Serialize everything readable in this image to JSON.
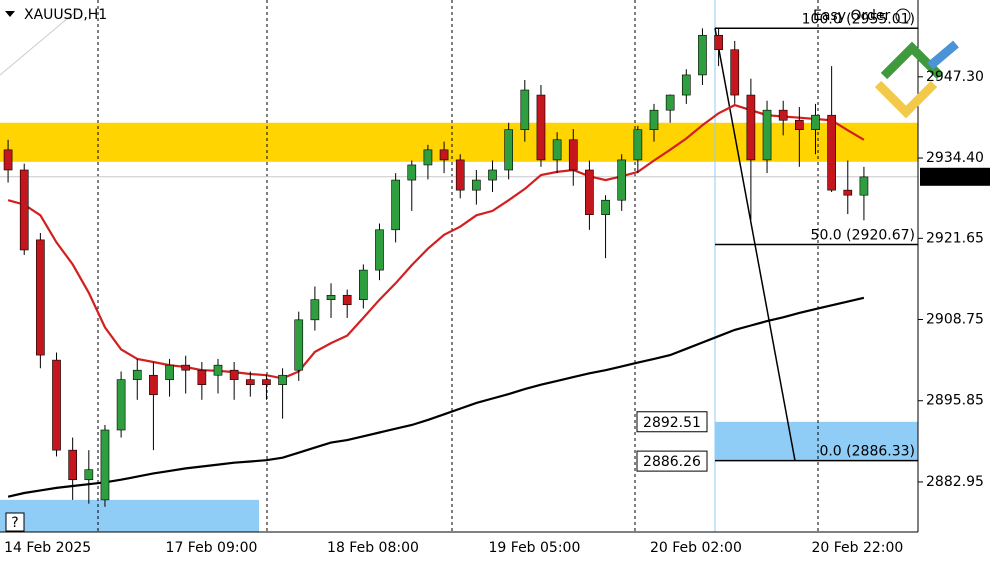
{
  "chart_data": {
    "type": "candlestick",
    "title": "XAUUSD,H1",
    "annotation": "Easy Order",
    "help": "?",
    "up_color": "#2f9e3f",
    "down_color": "#c4161c",
    "categories": [
      "14 Feb 2025",
      null,
      null,
      null,
      null,
      null,
      null,
      null,
      null,
      null,
      "17 Feb 09:00",
      null,
      null,
      null,
      null,
      null,
      null,
      null,
      null,
      null,
      "18 Feb 08:00",
      null,
      null,
      null,
      null,
      null,
      null,
      null,
      null,
      null,
      "19 Feb 05:00",
      null,
      null,
      null,
      null,
      null,
      null,
      null,
      null,
      null,
      "20 Feb 02:00",
      null,
      null,
      null,
      null,
      null,
      null,
      null,
      null,
      null,
      "20 Feb 22:00",
      null,
      null,
      null
    ],
    "open": [
      2935.7,
      2932.5,
      2921.4,
      2902.3,
      2888.0,
      2883.3,
      2880.1,
      2891.2,
      2899.2,
      2899.9,
      2899.2,
      2901.5,
      2900.7,
      2899.9,
      2900.7,
      2899.2,
      2899.2,
      2898.4,
      2900.7,
      2908.7,
      2911.9,
      2912.6,
      2911.9,
      2916.6,
      2923.0,
      2930.9,
      2933.3,
      2935.7,
      2934.1,
      2929.3,
      2930.9,
      2932.5,
      2938.9,
      2944.4,
      2934.1,
      2937.3,
      2932.5,
      2925.4,
      2927.7,
      2934.1,
      2938.9,
      2942.0,
      2944.4,
      2947.6,
      2953.9,
      2951.6,
      2944.4,
      2934.1,
      2942.0,
      2940.4,
      2938.9,
      2941.2,
      2929.3,
      2928.5
    ],
    "high": [
      2937.3,
      2933.5,
      2922.5,
      2903.5,
      2890.0,
      2888.0,
      2892.0,
      2900.5,
      2902.5,
      2902.0,
      2902.5,
      2903.0,
      2902.0,
      2902.5,
      2902.0,
      2900.5,
      2900.0,
      2901.0,
      2910.0,
      2914.0,
      2914.5,
      2913.5,
      2917.5,
      2924.0,
      2932.0,
      2934.0,
      2936.5,
      2937.0,
      2935.0,
      2932.5,
      2934.0,
      2940.0,
      2946.8,
      2946.0,
      2938.5,
      2939.0,
      2934.0,
      2928.5,
      2935.0,
      2939.5,
      2943.0,
      2944.5,
      2948.5,
      2955.0,
      2955.0,
      2953.0,
      2947.0,
      2943.5,
      2943.5,
      2942.5,
      2943.0,
      2949.0,
      2934.0,
      2933.0
    ],
    "low": [
      2930.5,
      2919.0,
      2901.0,
      2887.0,
      2880.1,
      2879.5,
      2879.0,
      2890.0,
      2896.0,
      2888.0,
      2896.5,
      2897.0,
      2896.0,
      2897.0,
      2896.0,
      2896.5,
      2896.0,
      2893.0,
      2899.0,
      2907.0,
      2909.0,
      2909.0,
      2910.5,
      2915.0,
      2921.0,
      2926.0,
      2931.0,
      2932.0,
      2928.0,
      2927.0,
      2929.0,
      2931.0,
      2937.0,
      2933.0,
      2932.0,
      2930.0,
      2923.0,
      2918.5,
      2926.0,
      2932.0,
      2937.0,
      2940.0,
      2943.0,
      2946.0,
      2949.0,
      2943.0,
      2924.6,
      2932.0,
      2938.0,
      2933.0,
      2935.0,
      2929.0,
      2925.5,
      2924.5
    ],
    "close": [
      2932.5,
      2919.8,
      2903.1,
      2888.0,
      2883.3,
      2884.9,
      2891.2,
      2899.2,
      2900.7,
      2896.8,
      2901.5,
      2900.7,
      2898.4,
      2901.5,
      2899.2,
      2898.4,
      2898.4,
      2899.9,
      2908.7,
      2911.9,
      2912.6,
      2911.1,
      2916.6,
      2923.0,
      2930.9,
      2933.3,
      2935.7,
      2934.1,
      2929.3,
      2930.9,
      2932.5,
      2938.9,
      2945.2,
      2934.1,
      2937.3,
      2932.5,
      2925.4,
      2927.7,
      2934.1,
      2938.9,
      2942.0,
      2944.4,
      2947.6,
      2953.9,
      2951.6,
      2944.4,
      2934.1,
      2942.0,
      2940.4,
      2938.9,
      2941.2,
      2929.3,
      2928.5,
      2931.4
    ],
    "series": [
      {
        "color": "#d21f1f",
        "values": [
          2927.7,
          2927.0,
          2925.3,
          2921.0,
          2917.5,
          2913.0,
          2907.5,
          2904.0,
          2902.5,
          2902.0,
          2901.5,
          2901.2,
          2900.7,
          2900.6,
          2900.4,
          2900.1,
          2899.9,
          2899.4,
          2900.5,
          2903.6,
          2905.0,
          2906.2,
          2909.0,
          2911.9,
          2914.5,
          2917.4,
          2920.0,
          2922.2,
          2923.5,
          2925.3,
          2926.0,
          2927.7,
          2929.5,
          2931.7,
          2932.2,
          2932.5,
          2931.5,
          2930.9,
          2931.5,
          2932.2,
          2934.0,
          2935.7,
          2937.5,
          2939.6,
          2941.5,
          2942.8,
          2942.0,
          2941.2,
          2941.0,
          2940.8,
          2940.6,
          2940.4,
          2938.8,
          2937.3
        ]
      },
      {
        "color": "#000000",
        "values": [
          2880.6,
          2881.2,
          2881.6,
          2882.0,
          2882.3,
          2882.6,
          2882.9,
          2883.3,
          2883.8,
          2884.3,
          2884.7,
          2885.1,
          2885.4,
          2885.7,
          2886.0,
          2886.2,
          2886.4,
          2886.8,
          2887.6,
          2888.4,
          2889.2,
          2889.6,
          2890.2,
          2890.8,
          2891.4,
          2892.0,
          2892.8,
          2893.7,
          2894.6,
          2895.5,
          2896.2,
          2896.9,
          2897.7,
          2898.4,
          2899.0,
          2899.6,
          2900.2,
          2900.7,
          2901.3,
          2901.9,
          2902.5,
          2903.1,
          2904.1,
          2905.1,
          2906.1,
          2907.1,
          2907.8,
          2908.5,
          2909.1,
          2909.8,
          2910.4,
          2911.0,
          2911.6,
          2912.2
        ]
      }
    ],
    "zones": [
      {
        "low": 2933.8,
        "high": 2940.0,
        "color": "#ffd400"
      },
      {
        "low": 2886.4,
        "high": 2892.5,
        "color": "#8fcdf7"
      },
      {
        "low": 2875.0,
        "high": 2880.1,
        "color": "#8fcdf7"
      }
    ],
    "fib_levels": [
      2955.01,
      2920.67,
      2886.33
    ],
    "fib_value_labels": [
      "100.0 (2955.01)",
      "50.0 (2920.67)",
      "0.0 (2886.33)"
    ],
    "price_tags": [
      2892.51,
      2886.26
    ],
    "current_price": 2931.42,
    "ylim": [
      2875.0,
      2959.5
    ],
    "yticks": [
      {
        "value": 2947.3,
        "label": "2947.30"
      },
      {
        "value": 2934.4,
        "label": "2934.40"
      },
      2921.65,
      2908.75,
      2895.85,
      2882.95
    ]
  }
}
